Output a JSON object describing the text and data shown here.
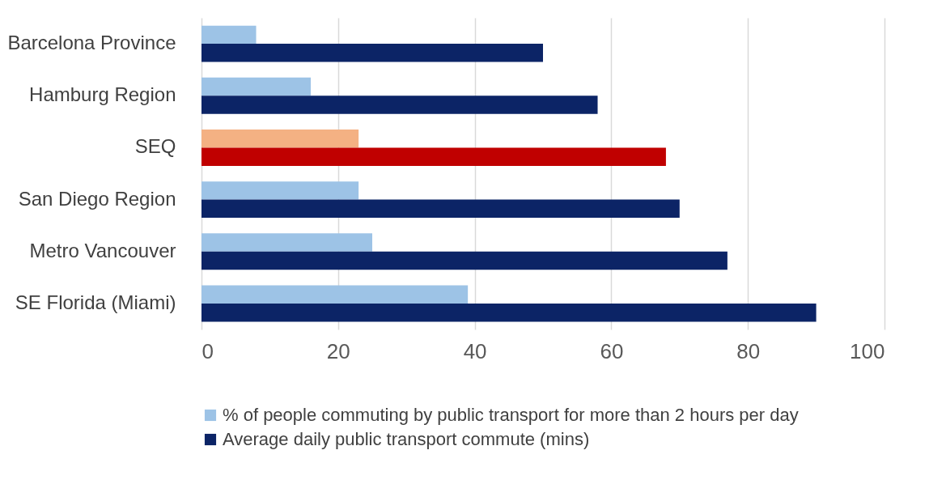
{
  "chart_data": {
    "type": "bar",
    "orientation": "horizontal",
    "categories": [
      "Barcelona Province",
      "Hamburg Region",
      "SEQ",
      "San Diego Region",
      "Metro Vancouver",
      "SE Florida (Miami)"
    ],
    "series": [
      {
        "name": "% of people commuting by public transport for more than 2 hours per day",
        "color": "#9dc3e6",
        "colors": [
          "#9dc3e6",
          "#9dc3e6",
          "#f4b183",
          "#9dc3e6",
          "#9dc3e6",
          "#9dc3e6"
        ],
        "values": [
          8,
          16,
          23,
          23,
          25,
          39
        ]
      },
      {
        "name": "Average daily public transport commute (mins)",
        "color": "#0c2466",
        "colors": [
          "#0c2466",
          "#0c2466",
          "#c00000",
          "#0c2466",
          "#0c2466",
          "#0c2466"
        ],
        "values": [
          50,
          58,
          68,
          70,
          77,
          90
        ]
      }
    ],
    "xlim": [
      0,
      100
    ],
    "xticks": [
      0,
      20,
      40,
      60,
      80,
      100
    ],
    "grid": "x",
    "legend": "bottom"
  }
}
